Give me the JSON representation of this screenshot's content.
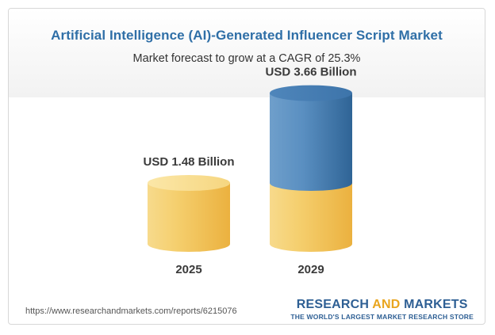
{
  "chart_data": {
    "type": "bar",
    "title": "Artificial Intelligence (AI)-Generated Influencer Script Market",
    "subtitle": "Market forecast to grow at a CAGR of 25.3%",
    "categories": [
      "2025",
      "2029"
    ],
    "values": [
      1.48,
      3.66
    ],
    "value_labels": [
      "USD 1.48 Billion",
      "USD 3.66 Billion"
    ],
    "unit": "USD Billion",
    "style": "3d-cylinder",
    "colors": {
      "base": "#f1c257",
      "growth": "#3f76a8"
    },
    "grid": false
  },
  "footer": {
    "source_url": "https://www.researchandmarkets.com/reports/6215076",
    "brand_part1": "RESEARCH",
    "brand_and": "AND",
    "brand_part2": "MARKETS",
    "tagline": "THE WORLD'S LARGEST MARKET RESEARCH STORE"
  }
}
